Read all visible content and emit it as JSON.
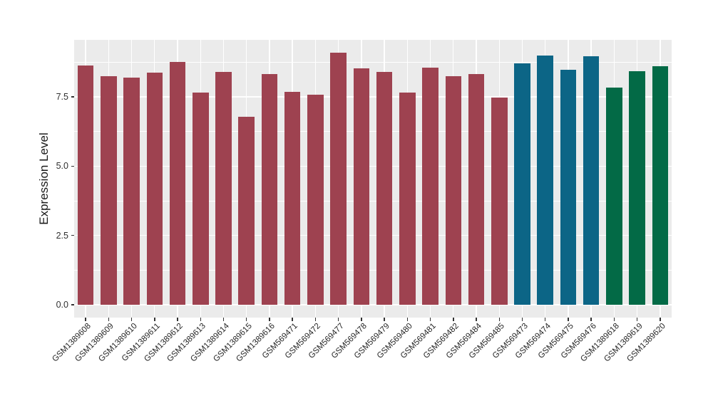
{
  "chart_data": {
    "type": "bar",
    "ylabel": "Expression Level",
    "xlabel": "",
    "ytick_labels": [
      "0.0",
      "2.5",
      "5.0",
      "7.5"
    ],
    "yticks": [
      0.0,
      2.5,
      5.0,
      7.5
    ],
    "yticks_minor": [
      1.25,
      3.75,
      6.25,
      8.75
    ],
    "ylim": [
      -0.46,
      9.55
    ],
    "grid": "on",
    "legend": "none",
    "panel_bg": "#EBEBEB",
    "grid_color": "#FFFFFF",
    "tick_color": "#333333",
    "group_colors": {
      "groupA": "#9E4250",
      "groupB": "#0C6586",
      "groupC": "#036A46"
    },
    "bars": [
      {
        "label": "GSM1389608",
        "value": 8.62,
        "group": "groupA"
      },
      {
        "label": "GSM1389609",
        "value": 8.24,
        "group": "groupA"
      },
      {
        "label": "GSM1389610",
        "value": 8.19,
        "group": "groupA"
      },
      {
        "label": "GSM1389611",
        "value": 8.36,
        "group": "groupA"
      },
      {
        "label": "GSM1389612",
        "value": 8.76,
        "group": "groupA"
      },
      {
        "label": "GSM1389613",
        "value": 7.65,
        "group": "groupA"
      },
      {
        "label": "GSM1389614",
        "value": 8.4,
        "group": "groupA"
      },
      {
        "label": "GSM1389615",
        "value": 6.78,
        "group": "groupA"
      },
      {
        "label": "GSM1389616",
        "value": 8.33,
        "group": "groupA"
      },
      {
        "label": "GSM569471",
        "value": 7.67,
        "group": "groupA"
      },
      {
        "label": "GSM569472",
        "value": 7.58,
        "group": "groupA"
      },
      {
        "label": "GSM569477",
        "value": 9.08,
        "group": "groupA"
      },
      {
        "label": "GSM569478",
        "value": 8.53,
        "group": "groupA"
      },
      {
        "label": "GSM569479",
        "value": 8.4,
        "group": "groupA"
      },
      {
        "label": "GSM569480",
        "value": 7.65,
        "group": "groupA"
      },
      {
        "label": "GSM569481",
        "value": 8.54,
        "group": "groupA"
      },
      {
        "label": "GSM569482",
        "value": 8.24,
        "group": "groupA"
      },
      {
        "label": "GSM569484",
        "value": 8.33,
        "group": "groupA"
      },
      {
        "label": "GSM569485",
        "value": 7.46,
        "group": "groupA"
      },
      {
        "label": "GSM569473",
        "value": 8.7,
        "group": "groupB"
      },
      {
        "label": "GSM569474",
        "value": 8.98,
        "group": "groupB"
      },
      {
        "label": "GSM569475",
        "value": 8.48,
        "group": "groupB"
      },
      {
        "label": "GSM569476",
        "value": 8.97,
        "group": "groupB"
      },
      {
        "label": "GSM1389618",
        "value": 7.82,
        "group": "groupC"
      },
      {
        "label": "GSM1389619",
        "value": 8.43,
        "group": "groupC"
      },
      {
        "label": "GSM1389620",
        "value": 8.59,
        "group": "groupC"
      }
    ]
  }
}
